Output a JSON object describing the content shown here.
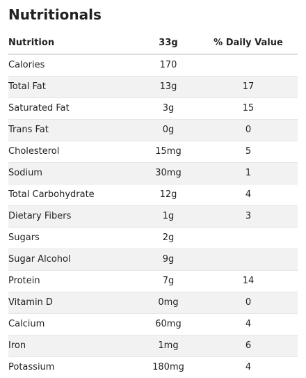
{
  "title": "Nutritionals",
  "table": {
    "headers": [
      "Nutrition",
      "33g",
      "% Daily Value"
    ],
    "rows": [
      {
        "name": "Calories",
        "amount": "170",
        "dv": "",
        "indent": false
      },
      {
        "name": "Total Fat",
        "amount": "13g",
        "dv": "17",
        "indent": false
      },
      {
        "name": "Saturated Fat",
        "amount": "3g",
        "dv": "15",
        "indent": true
      },
      {
        "name": "Trans Fat",
        "amount": "0g",
        "dv": "0",
        "indent": true
      },
      {
        "name": "Cholesterol",
        "amount": "15mg",
        "dv": "5",
        "indent": false
      },
      {
        "name": "Sodium",
        "amount": "30mg",
        "dv": "1",
        "indent": false
      },
      {
        "name": "Total Carbohydrate",
        "amount": "12g",
        "dv": "4",
        "indent": false
      },
      {
        "name": "Dietary Fibers",
        "amount": "1g",
        "dv": "3",
        "indent": true
      },
      {
        "name": "Sugars",
        "amount": "2g",
        "dv": "",
        "indent": true
      },
      {
        "name": "Sugar Alcohol",
        "amount": "9g",
        "dv": "",
        "indent": true
      },
      {
        "name": "Protein",
        "amount": "7g",
        "dv": "14",
        "indent": false
      },
      {
        "name": "Vitamin D",
        "amount": "0mg",
        "dv": "0",
        "indent": false
      },
      {
        "name": "Calcium",
        "amount": "60mg",
        "dv": "4",
        "indent": false
      },
      {
        "name": "Iron",
        "amount": "1mg",
        "dv": "6",
        "indent": false
      },
      {
        "name": "Potassium",
        "amount": "180mg",
        "dv": "4",
        "indent": false
      }
    ]
  }
}
